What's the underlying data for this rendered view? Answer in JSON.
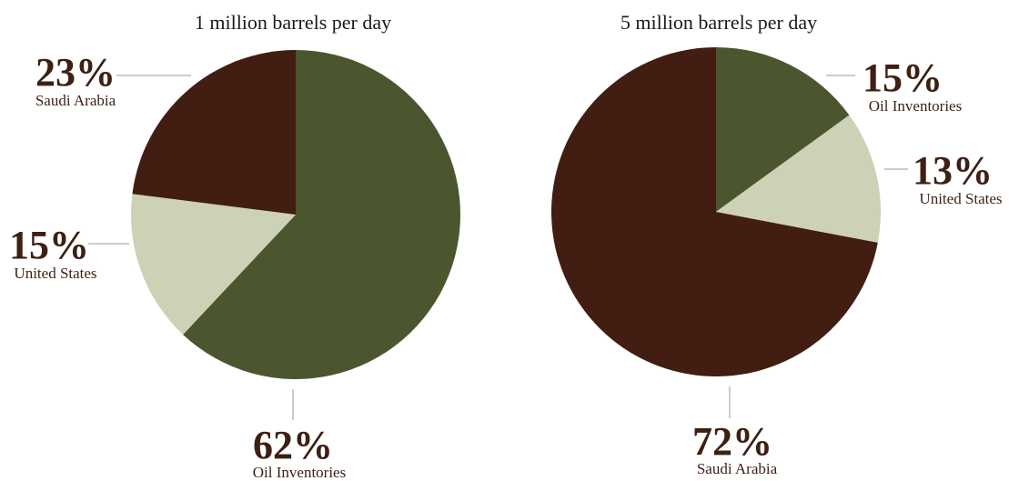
{
  "chart_data": [
    {
      "type": "pie",
      "title": "1 million barrels per day",
      "slices": [
        {
          "label": "Oil Inventories",
          "value": 62,
          "display": "62%",
          "color": "#4b562e"
        },
        {
          "label": "United States",
          "value": 15,
          "display": "15%",
          "color": "#cdd1b6"
        },
        {
          "label": "Saudi Arabia",
          "value": 23,
          "display": "23%",
          "color": "#411d12"
        }
      ]
    },
    {
      "type": "pie",
      "title": "5 million barrels per day",
      "slices": [
        {
          "label": "Oil Inventories",
          "value": 15,
          "display": "15%",
          "color": "#4b562e"
        },
        {
          "label": "United States",
          "value": 13,
          "display": "13%",
          "color": "#cdd1b6"
        },
        {
          "label": "Saudi Arabia",
          "value": 72,
          "display": "72%",
          "color": "#411d12"
        }
      ]
    }
  ]
}
